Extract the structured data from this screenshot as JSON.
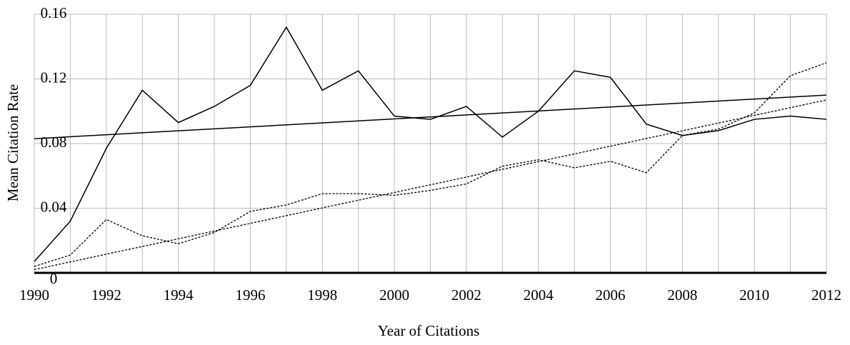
{
  "chart_data": {
    "type": "line",
    "xlabel": "Year of Citations",
    "ylabel": "Mean Citation Rate",
    "x": [
      1990,
      1991,
      1992,
      1993,
      1994,
      1995,
      1996,
      1997,
      1998,
      1999,
      2000,
      2001,
      2002,
      2003,
      2004,
      2005,
      2006,
      2007,
      2008,
      2009,
      2010,
      2011,
      2012
    ],
    "series": [
      {
        "color": "#000000",
        "dash": false,
        "values": [
          0.007,
          0.032,
          0.077,
          0.113,
          0.093,
          0.103,
          0.116,
          0.152,
          0.113,
          0.125,
          0.097,
          0.095,
          0.103,
          0.084,
          0.1,
          0.125,
          0.121,
          0.092,
          0.085,
          0.088,
          0.095,
          0.097,
          0.095
        ]
      },
      {
        "color": "#000000",
        "dash": true,
        "values": [
          0.004,
          0.011,
          0.033,
          0.023,
          0.018,
          0.025,
          0.038,
          0.042,
          0.049,
          0.049,
          0.048,
          0.051,
          0.055,
          0.066,
          0.07,
          0.065,
          0.069,
          0.062,
          0.085,
          0.089,
          0.099,
          0.122,
          0.13
        ]
      }
    ],
    "trendlines": [
      {
        "color": "#000000",
        "dash": false,
        "x": [
          1990,
          2012
        ],
        "values": [
          0.083,
          0.11
        ]
      },
      {
        "color": "#000000",
        "dash": true,
        "x": [
          1990,
          2012
        ],
        "values": [
          0.002,
          0.107
        ]
      }
    ],
    "xlim": [
      1990,
      2012
    ],
    "xticks": [
      1990,
      1992,
      1994,
      1996,
      1998,
      2000,
      2002,
      2004,
      2006,
      2008,
      2010,
      2012
    ],
    "ylim": [
      0,
      0.16
    ],
    "yticks": [
      0,
      0.04,
      0.08,
      0.12,
      0.16
    ],
    "grid": true
  }
}
